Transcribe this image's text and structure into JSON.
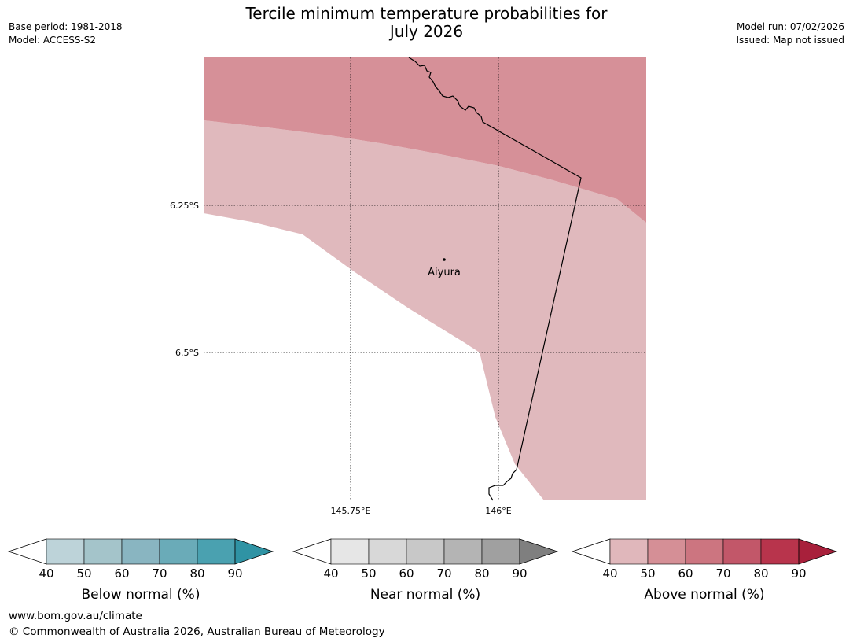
{
  "title": {
    "line1": "Tercile minimum temperature probabilities for",
    "line2": "July 2026"
  },
  "meta": {
    "base_period": "Base period: 1981-2018",
    "model": "Model: ACCESS-S2",
    "model_run": "Model run: 07/02/2026",
    "issued": "Issued: Map not issued"
  },
  "map": {
    "lat_labels": [
      "6.25°S",
      "6.5°S"
    ],
    "lon_labels": [
      "145.75°E",
      "146°E"
    ],
    "place": "Aiyura"
  },
  "legends": [
    {
      "label": "Below normal (%)",
      "ticks": [
        "40",
        "50",
        "60",
        "70",
        "80",
        "90"
      ],
      "colors": [
        "#bdd3d9",
        "#a4c4ca",
        "#89b5c1",
        "#6aabb8",
        "#4aa1b0",
        "#2f93a4"
      ]
    },
    {
      "label": "Near normal (%)",
      "ticks": [
        "40",
        "50",
        "60",
        "70",
        "80",
        "90"
      ],
      "colors": [
        "#e6e6e6",
        "#d8d8d8",
        "#c8c8c8",
        "#b4b4b4",
        "#a0a0a0",
        "#7f7f7f"
      ]
    },
    {
      "label": "Above normal (%)",
      "ticks": [
        "40",
        "50",
        "60",
        "70",
        "80",
        "90"
      ],
      "colors": [
        "#e0b7bb",
        "#d58f96",
        "#cc7580",
        "#c25769",
        "#b8344c",
        "#a8203b"
      ]
    }
  ],
  "colors": {
    "above_40_50": "#e0b9bd",
    "above_50_60": "#d69098",
    "gridline": "#000000",
    "border": "#000000"
  },
  "footer": {
    "url": "www.bom.gov.au/climate",
    "copyright": "© Commonwealth of Australia 2026, Australian Bureau of Meteorology"
  }
}
